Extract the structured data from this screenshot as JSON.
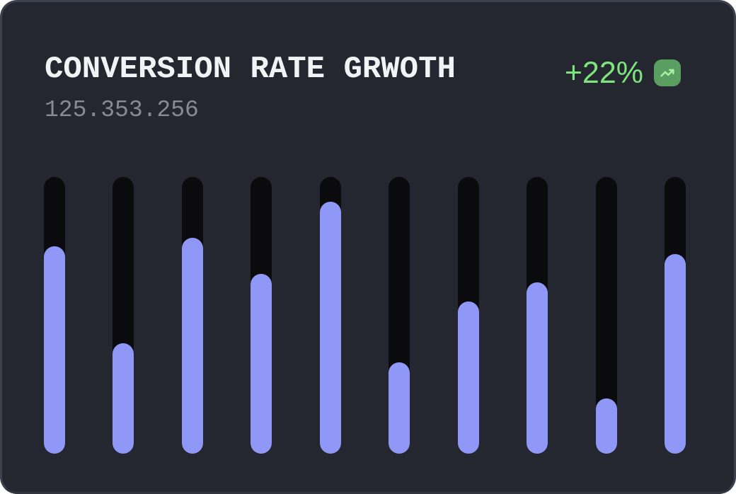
{
  "card": {
    "title": "CONVERSION RATE GRWOTH",
    "subtitle": "125.353.256",
    "badge": {
      "label": "+22%",
      "icon": "trending-up-icon"
    }
  },
  "colors": {
    "page-bg": "#ffffff",
    "card-bg": "#24272F",
    "card-border": "#3C414E",
    "title": "#F2F3F5",
    "subtitle": "#878B94",
    "green-text": "#7EE57D",
    "icon-bg": "#5A9E61",
    "icon-arrow": "#A8F0A2",
    "bar-track": "#0B0B0E",
    "bar-fill": "#8F98F7"
  },
  "chart_data": {
    "type": "bar",
    "title": "CONVERSION RATE GRWOTH",
    "categories": [
      "",
      "",
      "",
      "",
      "",
      "",
      "",
      "",
      "",
      ""
    ],
    "values": [
      75,
      40,
      78,
      65,
      91,
      33,
      55,
      62,
      20,
      72
    ],
    "unit": "percent-of-track-height",
    "xlabel": "",
    "ylabel": "",
    "ylim": [
      0,
      100
    ],
    "grid": false,
    "legend": false,
    "bar_style": "rounded-pill-with-dark-track"
  }
}
